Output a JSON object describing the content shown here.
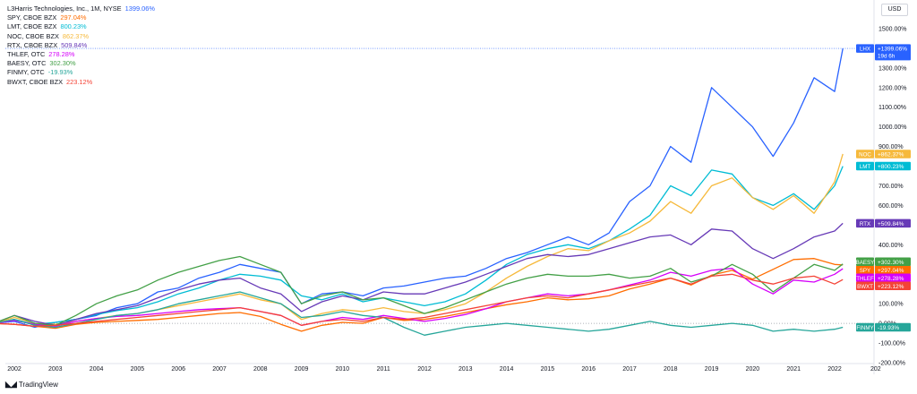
{
  "chart_data": {
    "type": "line",
    "title": "L3Harris Technologies, Inc., 1M, NYSE",
    "currency_label": "USD",
    "yunit": "%",
    "ylim": [
      -200,
      1600
    ],
    "yticks": [
      "1500.00%",
      "1400.00%",
      "1300.00%",
      "1200.00%",
      "1100.00%",
      "1000.00%",
      "900.00%",
      "800.00%",
      "700.00%",
      "600.00%",
      "500.00%",
      "400.00%",
      "300.00%",
      "200.00%",
      "100.00%",
      "0.00%",
      "-100.00%",
      "-200.00%"
    ],
    "xticks": [
      "2002",
      "2003",
      "2004",
      "2005",
      "2006",
      "2007",
      "2008",
      "2009",
      "2010",
      "2011",
      "2012",
      "2013",
      "2014",
      "2015",
      "2016",
      "2017",
      "2018",
      "2019",
      "2020",
      "2021",
      "2022",
      "202"
    ],
    "x": [
      2001.5,
      2002,
      2002.5,
      2003,
      2003.5,
      2004,
      2004.5,
      2005,
      2005.5,
      2006,
      2006.5,
      2007,
      2007.5,
      2008,
      2008.5,
      2009,
      2009.5,
      2010,
      2010.5,
      2011,
      2011.5,
      2012,
      2012.5,
      2013,
      2013.5,
      2014,
      2014.5,
      2015,
      2015.5,
      2016,
      2016.5,
      2017,
      2017.5,
      2018,
      2018.5,
      2019,
      2019.5,
      2020,
      2020.5,
      2021,
      2021.5,
      2022,
      2022.2
    ],
    "series": [
      {
        "name": "L3Harris Technologies, Inc., 1M, NYSE",
        "short": "LHX",
        "value_label": "1399.06%",
        "badge_label": "+1399.06%",
        "badge_sub": "19d 6h",
        "color": "#2962ff",
        "values": [
          0,
          10,
          -20,
          5,
          20,
          40,
          80,
          100,
          160,
          180,
          230,
          260,
          300,
          280,
          260,
          100,
          150,
          160,
          140,
          180,
          190,
          210,
          230,
          240,
          280,
          330,
          360,
          400,
          440,
          400,
          460,
          620,
          700,
          900,
          820,
          1200,
          1100,
          1000,
          850,
          1020,
          1250,
          1180,
          1399
        ]
      },
      {
        "name": "SPY, CBOE BZX",
        "short": "SPY",
        "value_label": "297.04%",
        "badge_label": "+297.04%",
        "color": "#ff6d00",
        "values": [
          0,
          -5,
          -15,
          -25,
          -5,
          5,
          10,
          15,
          20,
          30,
          40,
          50,
          55,
          35,
          -5,
          -40,
          -10,
          5,
          0,
          30,
          15,
          20,
          35,
          55,
          75,
          95,
          110,
          130,
          120,
          125,
          140,
          175,
          200,
          230,
          195,
          245,
          270,
          225,
          275,
          325,
          330,
          300,
          297
        ]
      },
      {
        "name": "LMT, CBOE BZX",
        "short": "LMT",
        "value_label": "800.23%",
        "badge_label": "+800.23%",
        "color": "#00bcd4",
        "values": [
          0,
          20,
          -5,
          5,
          20,
          45,
          65,
          80,
          110,
          150,
          180,
          220,
          250,
          240,
          220,
          140,
          120,
          150,
          110,
          130,
          110,
          90,
          110,
          150,
          220,
          300,
          350,
          380,
          400,
          380,
          420,
          480,
          550,
          700,
          650,
          780,
          760,
          640,
          600,
          660,
          580,
          700,
          800
        ]
      },
      {
        "name": "NOC, CBOE BZX",
        "short": "NOC",
        "value_label": "862.37%",
        "badge_label": "+862.37%",
        "color": "#f6b93b",
        "values": [
          0,
          30,
          0,
          -5,
          10,
          25,
          40,
          50,
          70,
          90,
          110,
          130,
          150,
          120,
          100,
          20,
          50,
          70,
          60,
          80,
          60,
          50,
          70,
          100,
          160,
          230,
          290,
          340,
          380,
          370,
          420,
          460,
          520,
          620,
          560,
          700,
          740,
          640,
          580,
          650,
          560,
          720,
          862
        ]
      },
      {
        "name": "RTX, CBOE BZX",
        "short": "RTX",
        "value_label": "509.84%",
        "badge_label": "+509.84%",
        "color": "#673ab7",
        "values": [
          0,
          40,
          10,
          -10,
          20,
          50,
          70,
          90,
          130,
          170,
          200,
          220,
          230,
          180,
          150,
          60,
          110,
          140,
          120,
          160,
          150,
          150,
          180,
          210,
          250,
          290,
          330,
          350,
          340,
          350,
          380,
          410,
          440,
          450,
          400,
          480,
          470,
          380,
          330,
          380,
          440,
          470,
          509
        ]
      },
      {
        "name": "THLEF, OTC",
        "short": "THLEF",
        "value_label": "278.28%",
        "badge_label": "+278.28%",
        "color": "#d500f9",
        "values": [
          0,
          15,
          -5,
          -15,
          10,
          25,
          35,
          40,
          50,
          60,
          70,
          75,
          80,
          60,
          40,
          -10,
          10,
          30,
          20,
          40,
          25,
          10,
          25,
          45,
          75,
          110,
          130,
          150,
          140,
          150,
          170,
          195,
          220,
          260,
          240,
          270,
          280,
          200,
          150,
          220,
          210,
          250,
          278
        ]
      },
      {
        "name": "BAESY, OTC",
        "short": "BAESY",
        "value_label": "302.30%",
        "badge_label": "+302.30%",
        "color": "#43a047",
        "values": [
          0,
          40,
          0,
          -10,
          40,
          100,
          140,
          170,
          220,
          260,
          290,
          320,
          340,
          300,
          260,
          100,
          140,
          160,
          120,
          130,
          90,
          50,
          80,
          120,
          160,
          200,
          230,
          250,
          240,
          240,
          250,
          230,
          240,
          280,
          210,
          240,
          300,
          250,
          160,
          230,
          300,
          270,
          302
        ]
      },
      {
        "name": "FINMY, OTC",
        "short": "FINMY",
        "value_label": "-19.93%",
        "badge_label": "-19.93%",
        "color": "#26a69a",
        "values": [
          0,
          20,
          -10,
          -20,
          0,
          20,
          40,
          50,
          70,
          100,
          120,
          140,
          160,
          130,
          100,
          30,
          40,
          60,
          40,
          30,
          -20,
          -60,
          -40,
          -20,
          -10,
          0,
          -10,
          -20,
          -30,
          -40,
          -30,
          -10,
          10,
          -10,
          -20,
          -10,
          0,
          -10,
          -40,
          -30,
          -40,
          -30,
          -19.93
        ]
      },
      {
        "name": "BWXT, CBOE BZX",
        "short": "BWXT",
        "value_label": "223.12%",
        "badge_label": "+223.12%",
        "color": "#f44336",
        "values": [
          0,
          -5,
          -15,
          -10,
          0,
          10,
          20,
          30,
          40,
          50,
          60,
          70,
          80,
          60,
          40,
          -10,
          10,
          20,
          10,
          30,
          20,
          30,
          50,
          70,
          90,
          110,
          130,
          140,
          130,
          150,
          170,
          190,
          210,
          230,
          200,
          240,
          250,
          220,
          200,
          230,
          240,
          200,
          223
        ]
      }
    ]
  },
  "footer": {
    "brand": "TradingView"
  }
}
